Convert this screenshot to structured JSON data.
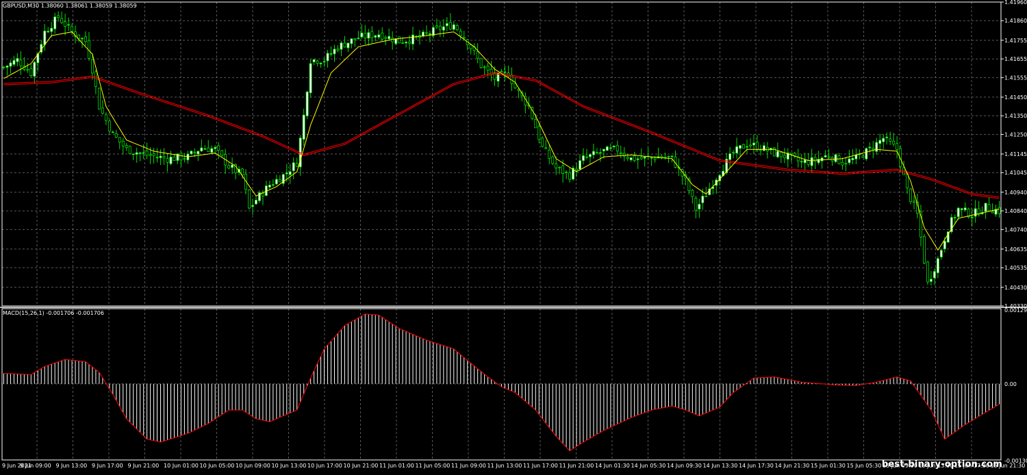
{
  "main_panel": {
    "header": "GBPUSD,M30  1.38060 1.38061 1.38059 1.38059",
    "price_ticks": [
      "1.41960",
      "1.41860",
      "1.41755",
      "1.41655",
      "1.41555",
      "1.41450",
      "1.41350",
      "1.41250",
      "1.41145",
      "1.41045",
      "1.40940",
      "1.40840",
      "1.40740",
      "1.40635",
      "1.40535",
      "1.40430",
      "1.40330"
    ]
  },
  "macd_panel": {
    "header": "MACD(15,26,1) -0.001706 -0.001706",
    "ticks": [
      "0.00129",
      "0.00",
      "-0.001306"
    ]
  },
  "time_axis": {
    "labels": [
      "9 Jun 2021",
      "9 Jun 09:00",
      "9 Jun 13:00",
      "9 Jun 17:00",
      "9 Jun 21:00",
      "10 Jun 01:00",
      "10 Jun 05:00",
      "10 Jun 09:00",
      "10 Jun 13:00",
      "10 Jun 17:00",
      "10 Jun 21:00",
      "11 Jun 01:00",
      "11 Jun 05:00",
      "11 Jun 09:00",
      "11 Jun 13:00",
      "11 Jun 17:00",
      "11 Jun 21:00",
      "14 Jun 01:30",
      "14 Jun 05:30",
      "14 Jun 09:30",
      "14 Jun 13:30",
      "14 Jun 17:30",
      "14 Jun 21:30",
      "15 Jun 01:30",
      "15 Jun 05:30",
      "15 Jun 09:30",
      "15 Jun 13:30",
      "15 Jun 17:30",
      "15 Jun 21:30"
    ]
  },
  "watermark": "best-binary-option.com",
  "colors": {
    "background": "#000000",
    "grid": "#5a5a5a",
    "bull_body": "#ffffff",
    "bear_body": "#000000",
    "wick": "#00e000",
    "ma_fast": "#ffff00",
    "ma_slow": "#ff0000",
    "macd_hist": "#ffffff",
    "macd_signal": "#ff0000"
  },
  "chart_data": {
    "type": "candlestick",
    "symbol": "GBPUSD",
    "timeframe": "M30",
    "ylim": [
      1.4033,
      1.4196
    ],
    "close_path_keypoints": [
      [
        0,
        1.4161
      ],
      [
        4,
        1.4165
      ],
      [
        8,
        1.4158
      ],
      [
        12,
        1.418
      ],
      [
        16,
        1.4188
      ],
      [
        20,
        1.418
      ],
      [
        24,
        1.4175
      ],
      [
        26,
        1.416
      ],
      [
        28,
        1.414
      ],
      [
        32,
        1.4125
      ],
      [
        36,
        1.4117
      ],
      [
        42,
        1.4114
      ],
      [
        48,
        1.4112
      ],
      [
        54,
        1.4113
      ],
      [
        58,
        1.4118
      ],
      [
        62,
        1.4117
      ],
      [
        66,
        1.4108
      ],
      [
        70,
        1.4103
      ],
      [
        72,
        1.4085
      ],
      [
        74,
        1.409
      ],
      [
        78,
        1.4098
      ],
      [
        82,
        1.4103
      ],
      [
        86,
        1.411
      ],
      [
        88,
        1.4135
      ],
      [
        90,
        1.4165
      ],
      [
        94,
        1.4165
      ],
      [
        98,
        1.4172
      ],
      [
        104,
        1.4177
      ],
      [
        110,
        1.4179
      ],
      [
        116,
        1.4175
      ],
      [
        122,
        1.4177
      ],
      [
        128,
        1.4182
      ],
      [
        132,
        1.4184
      ],
      [
        136,
        1.4175
      ],
      [
        140,
        1.4162
      ],
      [
        144,
        1.4155
      ],
      [
        148,
        1.4158
      ],
      [
        150,
        1.415
      ],
      [
        154,
        1.414
      ],
      [
        158,
        1.4118
      ],
      [
        162,
        1.4107
      ],
      [
        166,
        1.4103
      ],
      [
        170,
        1.4112
      ],
      [
        176,
        1.4116
      ],
      [
        180,
        1.4117
      ],
      [
        184,
        1.4112
      ],
      [
        188,
        1.4112
      ],
      [
        192,
        1.4113
      ],
      [
        196,
        1.4112
      ],
      [
        200,
        1.41
      ],
      [
        203,
        1.4085
      ],
      [
        206,
        1.4093
      ],
      [
        210,
        1.4105
      ],
      [
        214,
        1.4115
      ],
      [
        218,
        1.412
      ],
      [
        222,
        1.4118
      ],
      [
        226,
        1.4115
      ],
      [
        230,
        1.4113
      ],
      [
        234,
        1.411
      ],
      [
        238,
        1.4111
      ],
      [
        242,
        1.4114
      ],
      [
        246,
        1.411
      ],
      [
        250,
        1.4112
      ],
      [
        254,
        1.4117
      ],
      [
        258,
        1.4123
      ],
      [
        262,
        1.4117
      ],
      [
        265,
        1.4095
      ],
      [
        268,
        1.4082
      ],
      [
        271,
        1.4045
      ],
      [
        274,
        1.4058
      ],
      [
        277,
        1.4075
      ],
      [
        280,
        1.4085
      ],
      [
        284,
        1.4082
      ],
      [
        288,
        1.4086
      ],
      [
        292,
        1.4084
      ]
    ],
    "ma_fast_keypoints": [
      [
        0,
        1.4155
      ],
      [
        8,
        1.4163
      ],
      [
        14,
        1.4178
      ],
      [
        20,
        1.418
      ],
      [
        26,
        1.4168
      ],
      [
        30,
        1.414
      ],
      [
        36,
        1.4122
      ],
      [
        44,
        1.4116
      ],
      [
        54,
        1.4113
      ],
      [
        62,
        1.4115
      ],
      [
        68,
        1.4108
      ],
      [
        74,
        1.4092
      ],
      [
        80,
        1.4097
      ],
      [
        86,
        1.4105
      ],
      [
        90,
        1.413
      ],
      [
        96,
        1.4158
      ],
      [
        104,
        1.4172
      ],
      [
        114,
        1.4176
      ],
      [
        124,
        1.4178
      ],
      [
        132,
        1.418
      ],
      [
        138,
        1.4172
      ],
      [
        144,
        1.416
      ],
      [
        150,
        1.4153
      ],
      [
        156,
        1.4135
      ],
      [
        162,
        1.4112
      ],
      [
        168,
        1.4105
      ],
      [
        176,
        1.4113
      ],
      [
        184,
        1.4114
      ],
      [
        196,
        1.4112
      ],
      [
        202,
        1.4098
      ],
      [
        206,
        1.4093
      ],
      [
        212,
        1.4105
      ],
      [
        218,
        1.4117
      ],
      [
        226,
        1.4117
      ],
      [
        236,
        1.4111
      ],
      [
        246,
        1.4112
      ],
      [
        256,
        1.4117
      ],
      [
        262,
        1.4116
      ],
      [
        266,
        1.41
      ],
      [
        270,
        1.4075
      ],
      [
        274,
        1.4063
      ],
      [
        280,
        1.408
      ],
      [
        292,
        1.4085
      ]
    ],
    "ma_slow_keypoints": [
      [
        0,
        1.4152
      ],
      [
        14,
        1.4153
      ],
      [
        26,
        1.4156
      ],
      [
        40,
        1.4147
      ],
      [
        60,
        1.4135
      ],
      [
        76,
        1.4124
      ],
      [
        88,
        1.4114
      ],
      [
        100,
        1.412
      ],
      [
        116,
        1.4136
      ],
      [
        132,
        1.4152
      ],
      [
        144,
        1.4158
      ],
      [
        156,
        1.4154
      ],
      [
        170,
        1.414
      ],
      [
        190,
        1.4126
      ],
      [
        210,
        1.4111
      ],
      [
        230,
        1.4106
      ],
      [
        246,
        1.4104
      ],
      [
        262,
        1.4106
      ],
      [
        272,
        1.4101
      ],
      [
        284,
        1.4093
      ],
      [
        292,
        1.4091
      ]
    ],
    "macd_ylim": [
      -0.001306,
      0.00129
    ],
    "macd_keypoints": [
      [
        0,
        0.00018
      ],
      [
        8,
        0.00016
      ],
      [
        12,
        0.0003
      ],
      [
        18,
        0.00042
      ],
      [
        24,
        0.00038
      ],
      [
        28,
        0.0002
      ],
      [
        32,
        -0.00018
      ],
      [
        36,
        -0.0006
      ],
      [
        42,
        -0.00095
      ],
      [
        46,
        -0.001
      ],
      [
        54,
        -0.00085
      ],
      [
        60,
        -0.00068
      ],
      [
        66,
        -0.00045
      ],
      [
        70,
        -0.00045
      ],
      [
        74,
        -0.0006
      ],
      [
        78,
        -0.00065
      ],
      [
        86,
        -0.00045
      ],
      [
        90,
        0.0001
      ],
      [
        94,
        0.0006
      ],
      [
        100,
        0.001
      ],
      [
        106,
        0.0012
      ],
      [
        110,
        0.00118
      ],
      [
        116,
        0.00095
      ],
      [
        124,
        0.00075
      ],
      [
        132,
        0.0006
      ],
      [
        136,
        0.0004
      ],
      [
        142,
        0.00012
      ],
      [
        146,
        -5e-05
      ],
      [
        150,
        -0.00015
      ],
      [
        156,
        -0.00045
      ],
      [
        162,
        -0.0009
      ],
      [
        166,
        -0.00115
      ],
      [
        170,
        -0.001
      ],
      [
        176,
        -0.0008
      ],
      [
        184,
        -0.00058
      ],
      [
        190,
        -0.00045
      ],
      [
        196,
        -0.00038
      ],
      [
        200,
        -0.00045
      ],
      [
        204,
        -0.00055
      ],
      [
        210,
        -0.0004
      ],
      [
        214,
        -0.00015
      ],
      [
        220,
        0.0001
      ],
      [
        226,
        0.00012
      ],
      [
        234,
        3e-05
      ],
      [
        244,
        -2e-05
      ],
      [
        250,
        -3e-05
      ],
      [
        256,
        3e-05
      ],
      [
        262,
        0.00012
      ],
      [
        266,
        5e-05
      ],
      [
        272,
        -0.00045
      ],
      [
        276,
        -0.00095
      ],
      [
        282,
        -0.0007
      ],
      [
        292,
        -0.00035
      ]
    ]
  }
}
